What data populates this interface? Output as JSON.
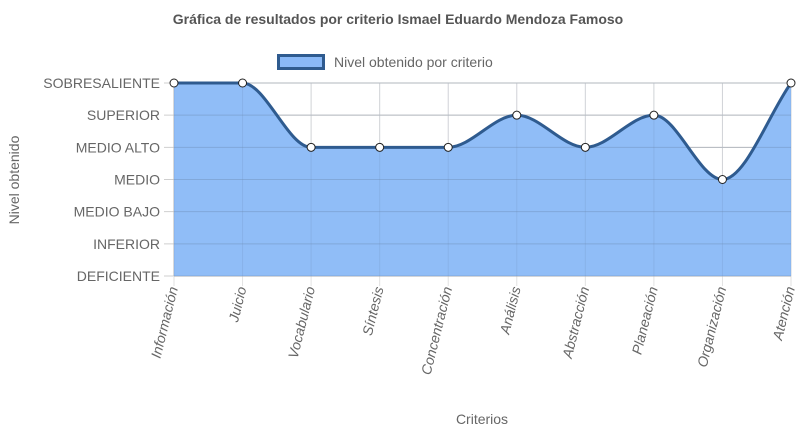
{
  "chart_data": {
    "type": "area",
    "title": "Gráfica de resultados por criterio Ismael Eduardo Mendoza Famoso",
    "xlabel": "Criterios",
    "ylabel": "Nivel obtenido",
    "categories": [
      "Información",
      "Juicio",
      "Vocabulario",
      "Síntesis",
      "Concentración",
      "Análisis",
      "Abstracción",
      "Planeación",
      "Organización",
      "Atención"
    ],
    "y_levels": [
      "DEFICIENTE",
      "INFERIOR",
      "MEDIO BAJO",
      "MEDIO",
      "MEDIO ALTO",
      "SUPERIOR",
      "SOBRESALIENTE"
    ],
    "ylim": [
      0,
      6
    ],
    "series": [
      {
        "name": "Nivel obtenido por criterio",
        "values": [
          6,
          6,
          4,
          4,
          4,
          5,
          4,
          5,
          3,
          6
        ],
        "fill_color": "#8ab9f7",
        "line_color": "#2f5b8f"
      }
    ],
    "grid": true,
    "legend": "top-center"
  }
}
